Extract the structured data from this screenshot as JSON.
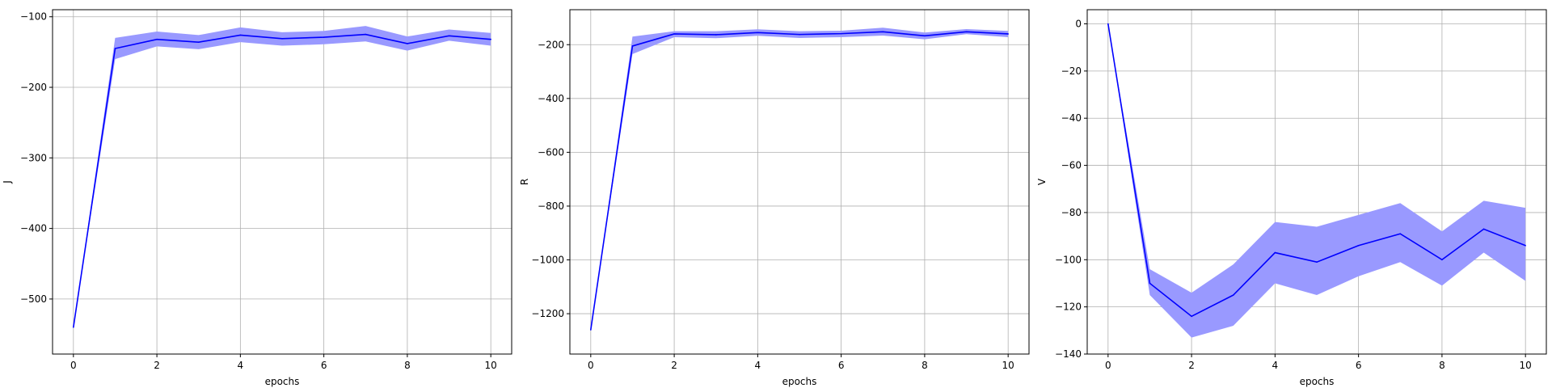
{
  "chart_data": [
    {
      "type": "line",
      "xlabel": "epochs",
      "ylabel": "J",
      "xlim": [
        -0.5,
        10.5
      ],
      "ylim": [
        -578,
        -90
      ],
      "xticks": [
        0,
        2,
        4,
        6,
        8,
        10
      ],
      "yticks": [
        -500,
        -400,
        -300,
        -200,
        -100
      ],
      "grid": true,
      "line_color": "#0000ff",
      "band_color": "#9999ff",
      "x": [
        0,
        1,
        2,
        3,
        4,
        5,
        6,
        7,
        8,
        9,
        10
      ],
      "series": [
        {
          "values": [
            -540,
            -145,
            -132,
            -136,
            -126,
            -131,
            -129,
            -125,
            -138,
            -127,
            -132
          ],
          "lower": [
            -540,
            -160,
            -142,
            -146,
            -136,
            -141,
            -139,
            -135,
            -148,
            -134,
            -141
          ],
          "upper": [
            -540,
            -130,
            -121,
            -126,
            -115,
            -122,
            -120,
            -113,
            -128,
            -118,
            -123
          ]
        }
      ]
    },
    {
      "type": "line",
      "xlabel": "epochs",
      "ylabel": "R",
      "xlim": [
        -0.5,
        10.5
      ],
      "ylim": [
        -1350,
        -70
      ],
      "xticks": [
        0,
        2,
        4,
        6,
        8,
        10
      ],
      "yticks": [
        -1200,
        -1000,
        -800,
        -600,
        -400,
        -200
      ],
      "grid": true,
      "line_color": "#0000ff",
      "band_color": "#9999ff",
      "x": [
        0,
        1,
        2,
        3,
        4,
        5,
        6,
        7,
        8,
        9,
        10
      ],
      "series": [
        {
          "values": [
            -1260,
            -205,
            -160,
            -163,
            -155,
            -162,
            -159,
            -152,
            -167,
            -152,
            -160
          ],
          "lower": [
            -1260,
            -235,
            -172,
            -176,
            -167,
            -175,
            -172,
            -166,
            -180,
            -161,
            -172
          ],
          "upper": [
            -1260,
            -170,
            -150,
            -150,
            -143,
            -150,
            -148,
            -137,
            -155,
            -142,
            -149
          ]
        }
      ]
    },
    {
      "type": "line",
      "xlabel": "epochs",
      "ylabel": "V",
      "xlim": [
        -0.5,
        10.5
      ],
      "ylim": [
        -140,
        6
      ],
      "xticks": [
        0,
        2,
        4,
        6,
        8,
        10
      ],
      "yticks": [
        -140,
        -120,
        -100,
        -80,
        -60,
        -40,
        -20,
        0
      ],
      "grid": true,
      "line_color": "#0000ff",
      "band_color": "#9999ff",
      "x": [
        0,
        1,
        2,
        3,
        4,
        5,
        6,
        7,
        8,
        9,
        10
      ],
      "series": [
        {
          "values": [
            0,
            -110,
            -124,
            -115,
            -97,
            -101,
            -94,
            -89,
            -100,
            -87,
            -94
          ],
          "lower": [
            0,
            -115,
            -133,
            -128,
            -110,
            -115,
            -107,
            -101,
            -111,
            -97,
            -109
          ],
          "upper": [
            0,
            -104,
            -114,
            -102,
            -84,
            -86,
            -81,
            -76,
            -88,
            -75,
            -78
          ]
        }
      ]
    }
  ]
}
